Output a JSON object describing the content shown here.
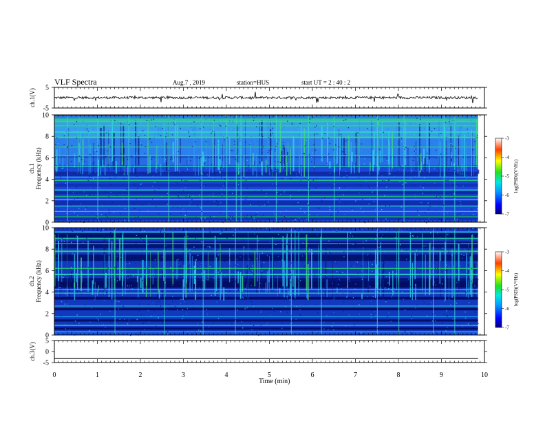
{
  "header": {
    "title": "VLF Spectra",
    "date": "Aug.7  , 2019",
    "station": "station=HUS",
    "start": "start  UT  =   2  : 40 : 2"
  },
  "colors": {
    "spectro_base": "#1a3fd0",
    "spectro_dark": "#000e6e",
    "line_green": "#28d868",
    "line_cyan": "#40d8e0",
    "trace": "#000000"
  },
  "chart_data": [
    {
      "type": "line",
      "name": "ch.1 waveform",
      "ylabel": "ch.1(V)",
      "ylim": [
        -5,
        5
      ],
      "yticks": [
        "5",
        "-5"
      ],
      "baseline": 0,
      "description_values": {
        "mean_level": 0
      }
    },
    {
      "type": "heatmap",
      "name": "ch.1 spectrogram",
      "ylabel": "ch.1\nFrequency  (kHz)",
      "ylabel_lines": [
        "ch.1",
        "Frequency  (kHz)"
      ],
      "ylim": [
        0,
        10
      ],
      "yticks": [
        "10",
        "8",
        "6",
        "4",
        "2",
        "0"
      ],
      "colorbar": {
        "label": "log(PSD)(V²/Hz)",
        "range": [
          -7,
          -3
        ],
        "ticks": [
          "-3",
          "-4",
          "-5",
          "-6",
          "-7"
        ]
      }
    },
    {
      "type": "heatmap",
      "name": "ch.2 spectrogram",
      "ylabel_lines": [
        "ch.2",
        "Frequency  (kHz)"
      ],
      "ylim": [
        0,
        10
      ],
      "yticks": [
        "10",
        "8",
        "6",
        "4",
        "2",
        "0"
      ],
      "colorbar": {
        "label": "log(PSD)(V²/Hz)",
        "range": [
          -7,
          -3
        ],
        "ticks": [
          "-3",
          "-4",
          "-5",
          "-6",
          "-7"
        ]
      }
    },
    {
      "type": "line",
      "name": "ch.3 waveform",
      "ylabel": "ch.3(V)",
      "ylim": [
        -5,
        5
      ],
      "yticks": [
        "5",
        "0",
        "-5"
      ],
      "baseline": -3.2
    },
    {
      "type": "axis",
      "xlabel": "Time  (min)",
      "xlim": [
        0,
        10
      ],
      "xticks": [
        "0",
        "1",
        "2",
        "3",
        "4",
        "5",
        "6",
        "7",
        "8",
        "9",
        "10"
      ],
      "data_end": 9.85
    }
  ]
}
